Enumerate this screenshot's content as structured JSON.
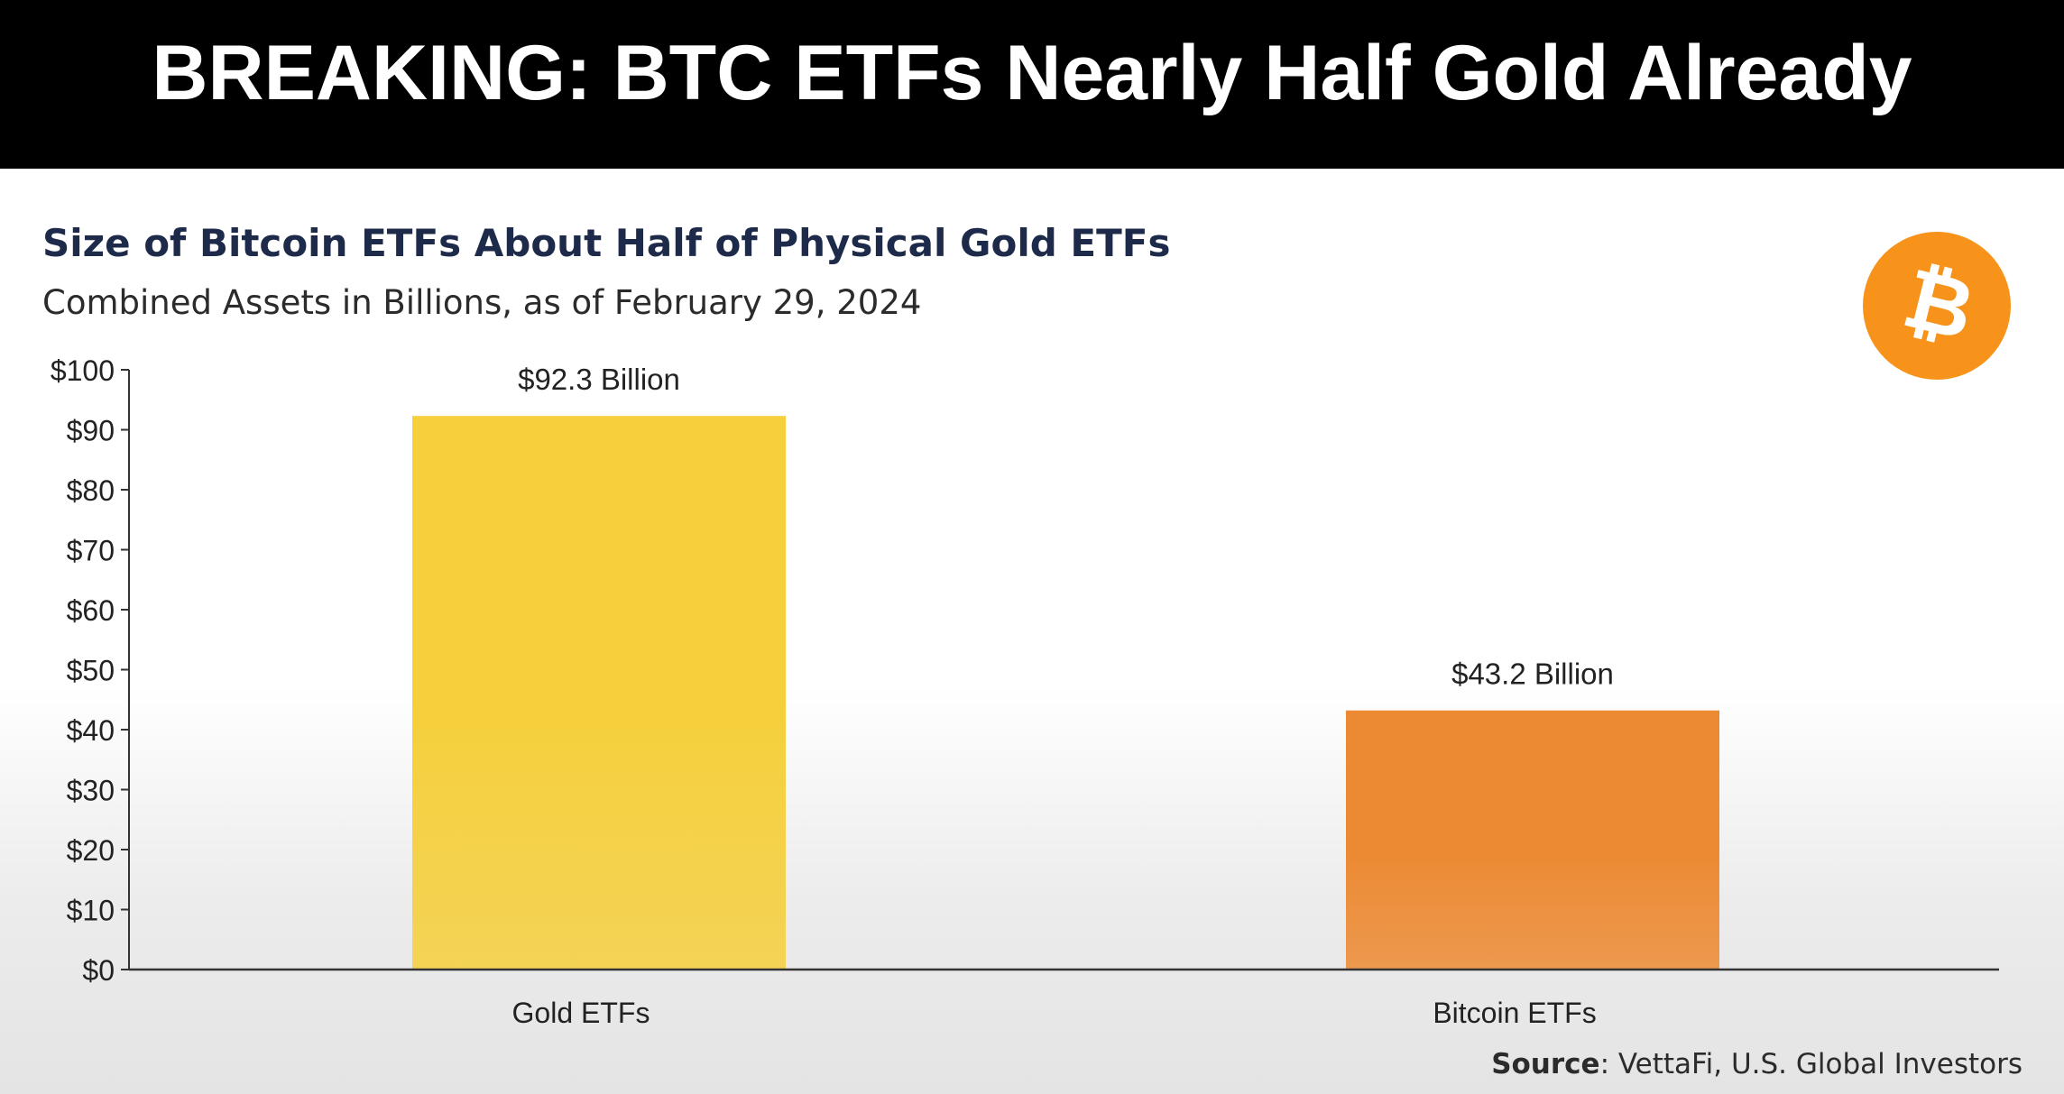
{
  "banner": {
    "headline": "BREAKING: BTC ETFs Nearly Half Gold Already"
  },
  "logo": {
    "icon": "bitcoin-icon",
    "symbol": "₿",
    "color": "#f7931a"
  },
  "source": {
    "label": "Source",
    "text": ": VettaFi, U.S. Global Investors"
  },
  "colors": {
    "gold_bar": "#f5cf3c",
    "bitcoin_bar": "#ec8a33",
    "title": "#1e2a4a"
  },
  "chart_data": {
    "type": "bar",
    "title": "Size of Bitcoin ETFs About Half of Physical Gold ETFs",
    "subtitle": "Combined Assets in Billions, as of February 29, 2024",
    "categories": [
      "Gold ETFs",
      "Bitcoin ETFs"
    ],
    "values": [
      92.3,
      43.2
    ],
    "data_labels": [
      "$92.3 Billion",
      "$43.2 Billion"
    ],
    "bar_colors": [
      "#f5cf3c",
      "#ec8a33"
    ],
    "xlabel": "",
    "ylabel": "",
    "ylim": [
      0,
      100
    ],
    "yticks": [
      0,
      10,
      20,
      30,
      40,
      50,
      60,
      70,
      80,
      90,
      100
    ],
    "ytick_labels": [
      "$0",
      "$10",
      "$20",
      "$30",
      "$40",
      "$50",
      "$60",
      "$70",
      "$80",
      "$90",
      "$100"
    ],
    "grid": false,
    "legend": "none"
  }
}
